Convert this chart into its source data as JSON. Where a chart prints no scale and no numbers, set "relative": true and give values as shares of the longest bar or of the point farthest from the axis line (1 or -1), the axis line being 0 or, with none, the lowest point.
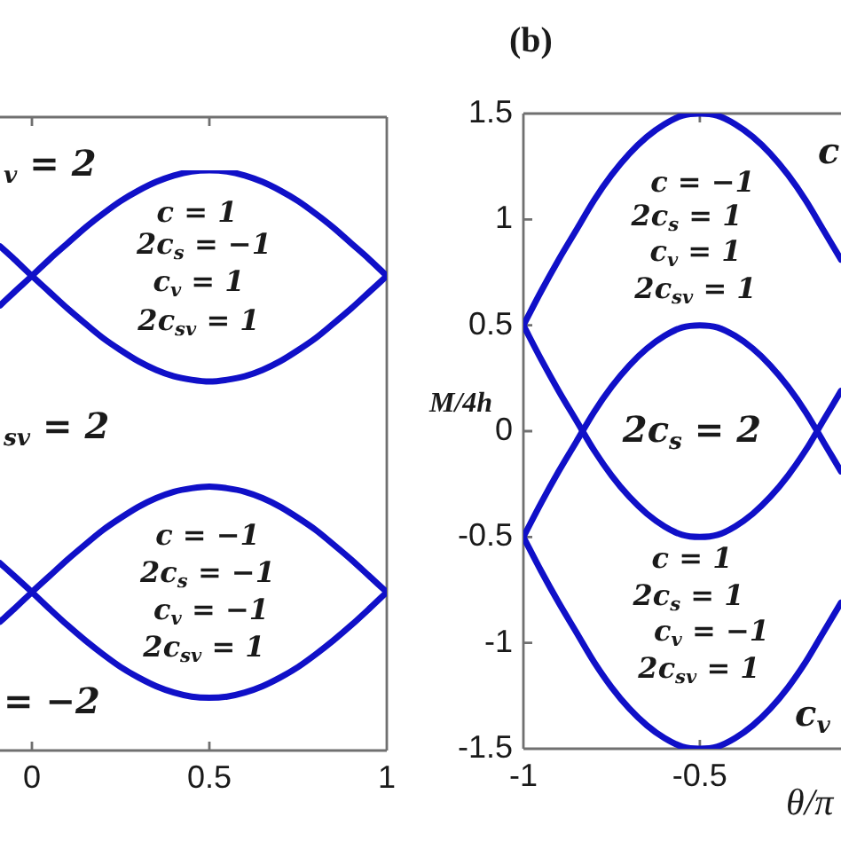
{
  "chart_data": [
    {
      "type": "line",
      "relative": true,
      "x": [
        -0.09,
        -0.05,
        0,
        0.05,
        0.1,
        0.15,
        0.2,
        0.25,
        0.3,
        0.35,
        0.4,
        0.45,
        0.5,
        0.55,
        0.6,
        0.65,
        0.7,
        0.75,
        0.8,
        0.85,
        0.9,
        0.95,
        1
      ],
      "series": [
        {
          "color": "#1010c8",
          "values": [
            0.767,
            0.79,
            0.818,
            0.847,
            0.874,
            0.901,
            0.925,
            0.947,
            0.965,
            0.98,
            0.991,
            0.998,
            1,
            0.998,
            0.991,
            0.98,
            0.965,
            0.947,
            0.925,
            0.901,
            0.874,
            0.847,
            0.818
          ]
        },
        {
          "color": "#1010c8",
          "values": [
            0.869,
            0.847,
            0.818,
            0.79,
            0.762,
            0.736,
            0.711,
            0.69,
            0.671,
            0.656,
            0.645,
            0.639,
            0.636,
            0.639,
            0.645,
            0.656,
            0.671,
            0.69,
            0.711,
            0.736,
            0.762,
            0.79,
            0.818
          ]
        },
        {
          "color": "#1010c8",
          "values": [
            0.222,
            0.244,
            0.273,
            0.301,
            0.329,
            0.355,
            0.38,
            0.401,
            0.42,
            0.435,
            0.446,
            0.452,
            0.455,
            0.452,
            0.446,
            0.435,
            0.42,
            0.401,
            0.38,
            0.355,
            0.329,
            0.301,
            0.273
          ]
        },
        {
          "color": "#1010c8",
          "values": [
            0.323,
            0.301,
            0.273,
            0.244,
            0.216,
            0.19,
            0.166,
            0.144,
            0.126,
            0.111,
            0.1,
            0.093,
            0.091,
            0.093,
            0.1,
            0.111,
            0.126,
            0.144,
            0.166,
            0.19,
            0.216,
            0.244,
            0.273
          ]
        }
      ],
      "xlim": [
        -0.09,
        1
      ],
      "xticks": [
        0,
        0.5,
        1
      ],
      "annotations": [
        "$_{v}$ = 2",
        "c = 1",
        "2c$_{s}$ = −1",
        "c$_{v}$ = 1",
        "2c$_{sv}$ = 1",
        "$_{sv}$ = 2",
        "c = −1",
        "2c$_{s}$ = −1",
        "c$_{v}$ = −1",
        "2c$_{sv}$ = 1",
        "= −2"
      ]
    },
    {
      "type": "line",
      "title": "(b)",
      "xlabel": "θ/π",
      "ylabel": "M/4h",
      "x": [
        -1,
        -0.95,
        -0.9,
        -0.85,
        -0.8,
        -0.75,
        -0.7,
        -0.65,
        -0.6,
        -0.55,
        -0.5,
        -0.45,
        -0.4,
        -0.35,
        -0.3,
        -0.25,
        -0.2,
        -0.15,
        -0.1
      ],
      "series": [
        {
          "color": "#1010c8",
          "values": [
            0.5,
            0.66,
            0.81,
            0.95,
            1.09,
            1.21,
            1.31,
            1.39,
            1.45,
            1.49,
            1.5,
            1.49,
            1.45,
            1.39,
            1.31,
            1.21,
            1.09,
            0.95,
            0.81
          ]
        },
        {
          "color": "#1010c8",
          "values": [
            -0.5,
            -0.34,
            -0.19,
            -0.05,
            0.09,
            0.21,
            0.31,
            0.39,
            0.45,
            0.49,
            0.5,
            0.49,
            0.45,
            0.39,
            0.31,
            0.21,
            0.09,
            -0.05,
            -0.19
          ]
        },
        {
          "color": "#1010c8",
          "values": [
            0.5,
            0.34,
            0.19,
            0.05,
            -0.09,
            -0.21,
            -0.31,
            -0.39,
            -0.45,
            -0.49,
            -0.5,
            -0.49,
            -0.45,
            -0.39,
            -0.31,
            -0.21,
            -0.09,
            0.05,
            0.19
          ]
        },
        {
          "color": "#1010c8",
          "values": [
            -0.5,
            -0.66,
            -0.81,
            -0.95,
            -1.09,
            -1.21,
            -1.31,
            -1.39,
            -1.45,
            -1.49,
            -1.5,
            -1.49,
            -1.45,
            -1.39,
            -1.31,
            -1.21,
            -1.09,
            -0.95,
            -0.81
          ]
        }
      ],
      "xlim": [
        -1,
        -0.1
      ],
      "xticks": [
        -1,
        -0.5
      ],
      "ylim": [
        -1.5,
        1.5
      ],
      "yticks": [
        -1.5,
        -1,
        -0.5,
        0,
        0.5,
        1,
        1.5
      ],
      "annotations": [
        "c",
        "c = −1",
        "2c$_{s}$ = 1",
        "c$_{v}$ = 1",
        "2c$_{sv}$ = 1",
        "2c$_{s}$ = 2",
        "c = 1",
        "2c$_{s}$ = 1",
        "c$_{v}$ = −1",
        "2c$_{sv}$ = 1",
        "c$_{v}$"
      ]
    }
  ]
}
